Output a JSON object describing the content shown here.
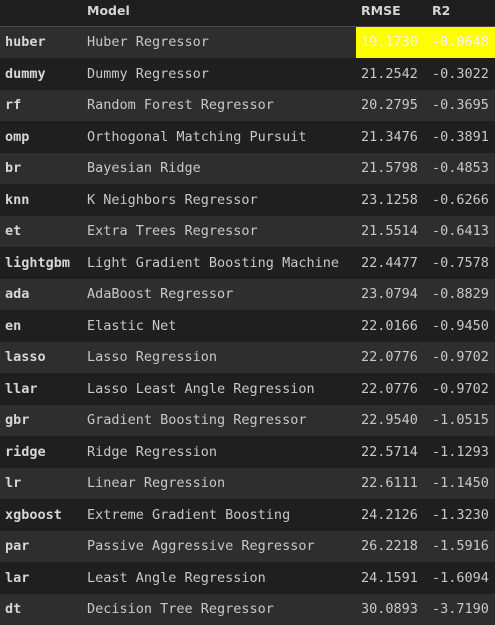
{
  "table": {
    "columns": [
      "",
      "Model",
      "RMSE",
      "R2"
    ],
    "highlight_color": "#ffff00",
    "rows": [
      {
        "id": "huber",
        "model": "Huber Regressor",
        "rmse": "19.1730",
        "r2": "-0.0648"
      },
      {
        "id": "dummy",
        "model": "Dummy Regressor",
        "rmse": "21.2542",
        "r2": "-0.3022"
      },
      {
        "id": "rf",
        "model": "Random Forest Regressor",
        "rmse": "20.2795",
        "r2": "-0.3695"
      },
      {
        "id": "omp",
        "model": "Orthogonal Matching Pursuit",
        "rmse": "21.3476",
        "r2": "-0.3891"
      },
      {
        "id": "br",
        "model": "Bayesian Ridge",
        "rmse": "21.5798",
        "r2": "-0.4853"
      },
      {
        "id": "knn",
        "model": "K Neighbors Regressor",
        "rmse": "23.1258",
        "r2": "-0.6266"
      },
      {
        "id": "et",
        "model": "Extra Trees Regressor",
        "rmse": "21.5514",
        "r2": "-0.6413"
      },
      {
        "id": "lightgbm",
        "model": "Light Gradient Boosting Machine",
        "rmse": "22.4477",
        "r2": "-0.7578"
      },
      {
        "id": "ada",
        "model": "AdaBoost Regressor",
        "rmse": "23.0794",
        "r2": "-0.8829"
      },
      {
        "id": "en",
        "model": "Elastic Net",
        "rmse": "22.0166",
        "r2": "-0.9450"
      },
      {
        "id": "lasso",
        "model": "Lasso Regression",
        "rmse": "22.0776",
        "r2": "-0.9702"
      },
      {
        "id": "llar",
        "model": "Lasso Least Angle Regression",
        "rmse": "22.0776",
        "r2": "-0.9702"
      },
      {
        "id": "gbr",
        "model": "Gradient Boosting Regressor",
        "rmse": "22.9540",
        "r2": "-1.0515"
      },
      {
        "id": "ridge",
        "model": "Ridge Regression",
        "rmse": "22.5714",
        "r2": "-1.1293"
      },
      {
        "id": "lr",
        "model": "Linear Regression",
        "rmse": "22.6111",
        "r2": "-1.1450"
      },
      {
        "id": "xgboost",
        "model": "Extreme Gradient Boosting",
        "rmse": "24.2126",
        "r2": "-1.3230"
      },
      {
        "id": "par",
        "model": "Passive Aggressive Regressor",
        "rmse": "26.2218",
        "r2": "-1.5916"
      },
      {
        "id": "lar",
        "model": "Least Angle Regression",
        "rmse": "24.1591",
        "r2": "-1.6094"
      },
      {
        "id": "dt",
        "model": "Decision Tree Regressor",
        "rmse": "30.0893",
        "r2": "-3.7190"
      }
    ]
  }
}
